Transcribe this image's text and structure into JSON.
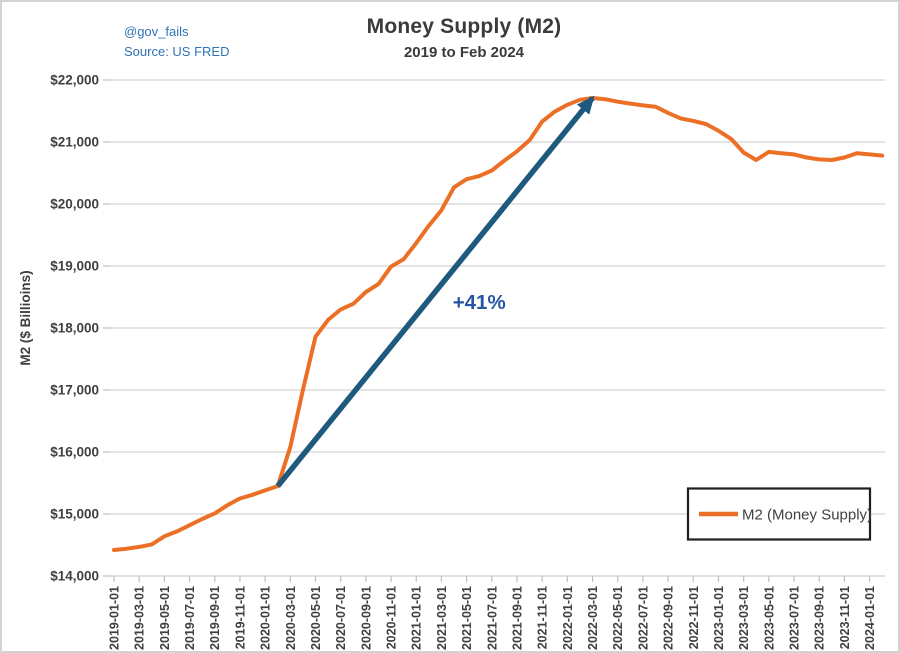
{
  "header": {
    "title": "Money Supply (M2)",
    "subtitle": "2019 to Feb 2024",
    "attribution_handle": "@gov_fails",
    "attribution_source": "Source: US FRED"
  },
  "legend": {
    "label": "M2 (Money Supply)"
  },
  "colors": {
    "line": "#EC6F26",
    "arrow": "#1E5A7E",
    "annotation_text": "#2456A5",
    "attribution": "#2E74B5",
    "title": "#3A3A3A",
    "tick_labels": "#404040",
    "gridline": "#E0E0E0",
    "axis": "#BFBFBF",
    "legend_border": "#1F1F1F"
  },
  "chart_data": {
    "type": "line",
    "title": "Money Supply (M2)",
    "subtitle": "2019 to Feb 2024",
    "xlabel": "",
    "ylabel": "M2 ($ Billioins)",
    "ylim": [
      14000,
      22000
    ],
    "grid": "horizontal",
    "legend_position": "bottom-right",
    "y_tick_values": [
      14000,
      15000,
      16000,
      17000,
      18000,
      19000,
      20000,
      21000,
      22000
    ],
    "y_tick_labels": [
      "$14,000",
      "$15,000",
      "$16,000",
      "$17,000",
      "$18,000",
      "$19,000",
      "$20,000",
      "$21,000",
      "$22,000"
    ],
    "x_tick_every": 2,
    "x": [
      "2019-01-01",
      "2019-02-01",
      "2019-03-01",
      "2019-04-01",
      "2019-05-01",
      "2019-06-01",
      "2019-07-01",
      "2019-08-01",
      "2019-09-01",
      "2019-10-01",
      "2019-11-01",
      "2019-12-01",
      "2020-01-01",
      "2020-02-01",
      "2020-03-01",
      "2020-04-01",
      "2020-05-01",
      "2020-06-01",
      "2020-07-01",
      "2020-08-01",
      "2020-09-01",
      "2020-10-01",
      "2020-11-01",
      "2020-12-01",
      "2021-01-01",
      "2021-02-01",
      "2021-03-01",
      "2021-04-01",
      "2021-05-01",
      "2021-06-01",
      "2021-07-01",
      "2021-08-01",
      "2021-09-01",
      "2021-10-01",
      "2021-11-01",
      "2021-12-01",
      "2022-01-01",
      "2022-02-01",
      "2022-03-01",
      "2022-04-01",
      "2022-05-01",
      "2022-06-01",
      "2022-07-01",
      "2022-08-01",
      "2022-09-01",
      "2022-10-01",
      "2022-11-01",
      "2022-12-01",
      "2023-01-01",
      "2023-02-01",
      "2023-03-01",
      "2023-04-01",
      "2023-05-01",
      "2023-06-01",
      "2023-07-01",
      "2023-08-01",
      "2023-09-01",
      "2023-10-01",
      "2023-11-01",
      "2023-12-01",
      "2024-01-01",
      "2024-02-01"
    ],
    "series": [
      {
        "name": "M2 (Money Supply)",
        "color": "#EC6F26",
        "values": [
          14420,
          14440,
          14470,
          14510,
          14640,
          14720,
          14820,
          14920,
          15010,
          15140,
          15250,
          15310,
          15380,
          15450,
          16080,
          17000,
          17860,
          18130,
          18300,
          18390,
          18580,
          18710,
          18990,
          19110,
          19370,
          19650,
          19900,
          20270,
          20400,
          20450,
          20540,
          20700,
          20850,
          21030,
          21330,
          21490,
          21600,
          21680,
          21710,
          21690,
          21650,
          21620,
          21590,
          21570,
          21470,
          21380,
          21340,
          21290,
          21180,
          21050,
          20830,
          20710,
          20840,
          20820,
          20800,
          20750,
          20720,
          20710,
          20750,
          20820,
          20800,
          20780
        ]
      }
    ],
    "annotations": [
      {
        "type": "arrow",
        "from_month": "2020-02-01",
        "from_value": 15450,
        "to_month": "2022-03-01",
        "to_value": 21710,
        "color": "#1E5A7E"
      },
      {
        "type": "text",
        "label": "+41%",
        "at_month": "2021-06-01",
        "at_value": 18420,
        "color": "#2456A5"
      }
    ]
  }
}
